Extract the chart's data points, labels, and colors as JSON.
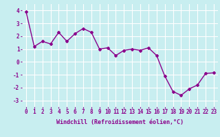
{
  "x": [
    0,
    1,
    2,
    3,
    4,
    5,
    6,
    7,
    8,
    9,
    10,
    11,
    12,
    13,
    14,
    15,
    16,
    17,
    18,
    19,
    20,
    21,
    22,
    23
  ],
  "y": [
    3.9,
    1.2,
    1.6,
    1.4,
    2.3,
    1.6,
    2.2,
    2.6,
    2.3,
    1.0,
    1.1,
    0.5,
    0.9,
    1.0,
    0.9,
    1.1,
    0.5,
    -1.1,
    -2.3,
    -2.6,
    -2.1,
    -1.8,
    -0.9,
    -0.85
  ],
  "line_color": "#8B008B",
  "marker": "D",
  "marker_size": 2,
  "linewidth": 1.0,
  "bg_color": "#c8eef0",
  "grid_color": "#ffffff",
  "xlabel": "Windchill (Refroidissement éolien,°C)",
  "xlabel_fontsize": 6.0,
  "tick_fontsize": 5.5,
  "xlim": [
    -0.5,
    23.5
  ],
  "ylim": [
    -3.5,
    4.5
  ],
  "yticks": [
    -3,
    -2,
    -1,
    0,
    1,
    2,
    3,
    4
  ],
  "xticks": [
    0,
    1,
    2,
    3,
    4,
    5,
    6,
    7,
    8,
    9,
    10,
    11,
    12,
    13,
    14,
    15,
    16,
    17,
    18,
    19,
    20,
    21,
    22,
    23
  ]
}
